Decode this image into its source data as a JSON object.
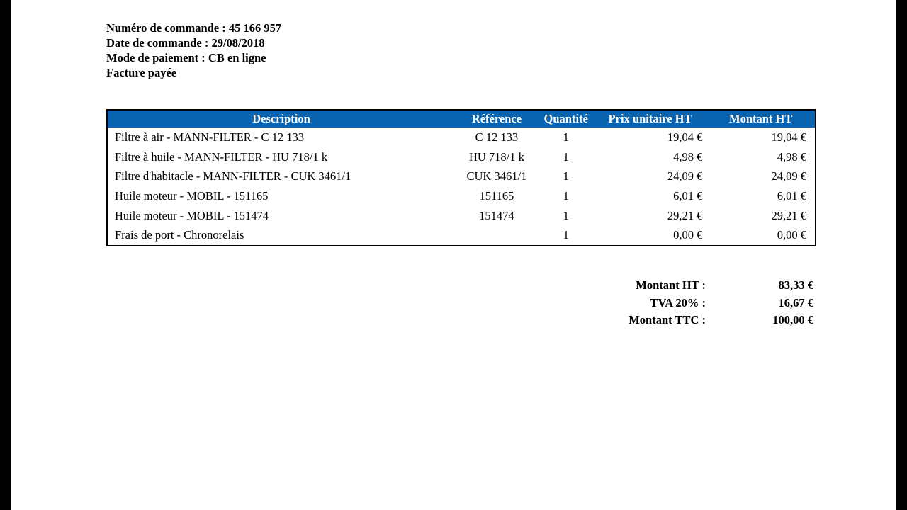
{
  "order": {
    "number": "Numéro de commande : 45 166 957",
    "date": "Date de commande : 29/08/2018",
    "payment": "Mode de paiement : CB en ligne",
    "status": "Facture payée"
  },
  "table": {
    "headers": {
      "description": "Description",
      "reference": "Référence",
      "quantity": "Quantité",
      "unit_price": "Prix unitaire HT",
      "amount": "Montant HT"
    },
    "rows": [
      {
        "description": "Filtre à air - MANN-FILTER - C 12 133",
        "reference": "C 12 133",
        "quantity": "1",
        "unit_price": "19,04 €",
        "amount": "19,04 €"
      },
      {
        "description": "Filtre à huile - MANN-FILTER - HU 718/1 k",
        "reference": "HU 718/1 k",
        "quantity": "1",
        "unit_price": "4,98 €",
        "amount": "4,98 €"
      },
      {
        "description": "Filtre d'habitacle - MANN-FILTER - CUK 3461/1",
        "reference": "CUK 3461/1",
        "quantity": "1",
        "unit_price": "24,09 €",
        "amount": "24,09 €"
      },
      {
        "description": "Huile moteur - MOBIL - 151165",
        "reference": "151165",
        "quantity": "1",
        "unit_price": "6,01 €",
        "amount": "6,01 €"
      },
      {
        "description": "Huile moteur - MOBIL - 151474",
        "reference": "151474",
        "quantity": "1",
        "unit_price": "29,21 €",
        "amount": "29,21 €"
      },
      {
        "description": "Frais de port - Chronorelais",
        "reference": "",
        "quantity": "1",
        "unit_price": "0,00 €",
        "amount": "0,00 €"
      }
    ]
  },
  "totals": {
    "ht_label": "Montant HT :",
    "ht_value": "83,33 €",
    "tva_label": "TVA 20% :",
    "tva_value": "16,67 €",
    "ttc_label": "Montant TTC :",
    "ttc_value": "100,00 €"
  },
  "colors": {
    "header_bg": "#0b64b0",
    "page_bg": "#ffffff",
    "outer_bg": "#000000"
  }
}
